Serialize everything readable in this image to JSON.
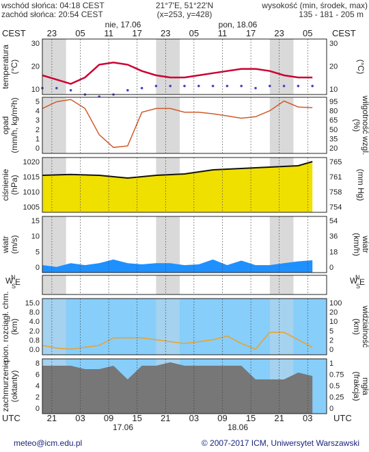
{
  "header": {
    "sunrise": "wschód słońca: 04:18 CEST",
    "sunset": "zachód słońca: 20:54 CEST",
    "coords": "21°7'E, 51°22'N",
    "grid": "(x=253, y=428)",
    "elevation_title": "wysokość (min, środek, max)",
    "elevation_values": "135 - 181 - 205 m"
  },
  "time_axis": {
    "tz_top": "CEST",
    "tz_bottom": "UTC",
    "day1_top": "nie, 17.06",
    "day2_top": "pon, 18.06",
    "top_hours": [
      "23",
      "05",
      "11",
      "17",
      "23",
      "05",
      "11",
      "17",
      "23",
      "05"
    ],
    "bottom_hours": [
      "21",
      "03",
      "09",
      "15",
      "21",
      "03",
      "09",
      "15",
      "21",
      "03"
    ],
    "day1_bottom": "17.06",
    "day2_bottom": "18.06"
  },
  "footer": {
    "left": "meteo@icm.edu.pl",
    "right": "© 2007-2017 ICM, Uniwersytet Warszawski"
  },
  "panels": {
    "temperature": {
      "left_label": "temperatura",
      "left_unit": "(°C)",
      "right_label": "(°C)",
      "ticks": [
        "30",
        "20",
        "10"
      ]
    },
    "precip": {
      "left_label": "opad",
      "left_unit": "(mm/h, kg/m²h)",
      "right_label": "wilgotność wzgl.",
      "right_unit": "(%)",
      "left_ticks": [
        "5",
        "4",
        "3",
        "2",
        "1",
        "0"
      ],
      "right_ticks": [
        "95",
        "80",
        "65",
        "50",
        "35",
        "20"
      ]
    },
    "pressure": {
      "left_label": "ciśnienie",
      "left_unit": "(hPa)",
      "right_label": "(mm Hg)",
      "left_ticks": [
        "1020",
        "1015",
        "1010",
        "1005"
      ],
      "right_ticks": [
        "765",
        "761",
        "758",
        "754"
      ]
    },
    "wind": {
      "left_label": "wiatr",
      "left_unit": "(m/s)",
      "right_label": "wiatr",
      "right_unit": "(km/h)",
      "left_ticks": [
        "15",
        "10",
        "5",
        "0"
      ],
      "right_ticks": [
        "54",
        "36",
        "18",
        "0"
      ]
    },
    "direction": {
      "n": "N",
      "w": "W",
      "e": "E",
      "s": "S"
    },
    "clouds": {
      "left_label": "pion. rozciągł. chm.",
      "left_unit": "(km)",
      "right_label": "widzialność",
      "right_unit": "(km)",
      "left_ticks": [
        "15.0",
        "8.0",
        "4.0",
        "2.0",
        "0.8",
        "0.0"
      ],
      "right_ticks": [
        "100",
        "20",
        "10",
        "5",
        "2",
        "0"
      ]
    },
    "cover": {
      "left_label": "zachmurzenie",
      "left_unit": "(oktanty)",
      "right_label": "mgła",
      "right_unit": "(frakcja)",
      "left_ticks": [
        "8",
        "6",
        "4",
        "2",
        "0"
      ],
      "right_ticks": [
        "1",
        "0.75",
        "0.5",
        "0.25",
        "0"
      ]
    }
  },
  "colors": {
    "night_shade": "#d9d9d9",
    "temperature": "#cc0033",
    "dew_point": "#4444cc",
    "humidity": "#d05a2a",
    "pressure_fill": "#f0e000",
    "pressure_fill_late": "#f5a800",
    "wind_fill": "#1e90ff",
    "cloud_bg": "#87cefa",
    "visibility": "#f0a020",
    "cloud_base": "#993344"
  },
  "chart_data": [
    {
      "type": "line",
      "name": "temperature",
      "x": [
        0,
        3,
        6,
        9,
        12,
        15,
        18,
        21,
        24,
        27,
        30,
        33,
        36,
        39,
        42,
        45,
        48,
        51,
        54,
        57
      ],
      "y": [
        19,
        17,
        15,
        18,
        24,
        25,
        24,
        21,
        19,
        18,
        18,
        19,
        20,
        21,
        22,
        22,
        21,
        19,
        18,
        18
      ],
      "ylim": [
        10,
        36
      ]
    },
    {
      "type": "line",
      "name": "dew point",
      "x": [
        0,
        3,
        6,
        9,
        12,
        15,
        18,
        21,
        24,
        27,
        30,
        33,
        36,
        39,
        42,
        45,
        48,
        51,
        54,
        57
      ],
      "y": [
        13,
        13,
        12,
        10,
        9,
        10,
        12,
        13,
        14,
        14,
        14,
        14,
        14,
        14,
        14,
        13,
        14,
        14,
        14,
        14
      ],
      "ylim": [
        10,
        36
      ]
    },
    {
      "type": "line",
      "name": "humidity",
      "x": [
        0,
        3,
        6,
        9,
        12,
        15,
        18,
        21,
        24,
        27,
        30,
        33,
        36,
        39,
        42,
        45,
        48,
        51,
        54,
        57
      ],
      "y": [
        80,
        89,
        92,
        80,
        45,
        28,
        30,
        75,
        80,
        80,
        75,
        75,
        73,
        70,
        67,
        69,
        77,
        90,
        82,
        81
      ],
      "ylim": [
        20,
        95
      ]
    },
    {
      "type": "area",
      "name": "pressure",
      "x": [
        0,
        6,
        12,
        18,
        24,
        30,
        36,
        42,
        48,
        54,
        57
      ],
      "y": [
        1015.5,
        1015.8,
        1015.5,
        1014.5,
        1015.5,
        1016,
        1017.5,
        1018,
        1018.5,
        1019,
        1020.5
      ],
      "ylim": [
        1002,
        1022
      ]
    },
    {
      "type": "area",
      "name": "wind",
      "x": [
        0,
        3,
        6,
        9,
        12,
        15,
        18,
        21,
        24,
        27,
        30,
        33,
        36,
        39,
        42,
        45,
        48,
        51,
        54,
        57
      ],
      "y": [
        2,
        1.5,
        2.5,
        2,
        2.5,
        3.5,
        2.5,
        2.2,
        2.5,
        2.5,
        2,
        2.2,
        3.5,
        2,
        3.2,
        2,
        2,
        2.5,
        3,
        3.3
      ],
      "ylim": [
        0,
        15
      ]
    },
    {
      "type": "line",
      "name": "visibility",
      "x": [
        0,
        3,
        6,
        9,
        12,
        15,
        18,
        21,
        24,
        27,
        30,
        33,
        36,
        39,
        42,
        45,
        48,
        51,
        54,
        57
      ],
      "y": [
        2.5,
        1.8,
        1.5,
        2,
        2.5,
        4.5,
        4.5,
        4.5,
        4,
        3.5,
        3,
        3.5,
        4,
        5,
        3,
        1.5,
        6,
        6,
        4,
        2
      ],
      "ylim": [
        0,
        15
      ]
    },
    {
      "type": "area",
      "name": "cloud cover",
      "x": [
        0,
        3,
        6,
        9,
        12,
        15,
        18,
        21,
        24,
        27,
        30,
        33,
        36,
        39,
        42,
        45,
        48,
        51,
        54,
        57
      ],
      "y": [
        7,
        7,
        7,
        6.5,
        6.5,
        7,
        5,
        7,
        7,
        7.5,
        7,
        7,
        7,
        7,
        7,
        5,
        5,
        5,
        6,
        5.5
      ],
      "ylim": [
        0,
        8
      ]
    }
  ]
}
